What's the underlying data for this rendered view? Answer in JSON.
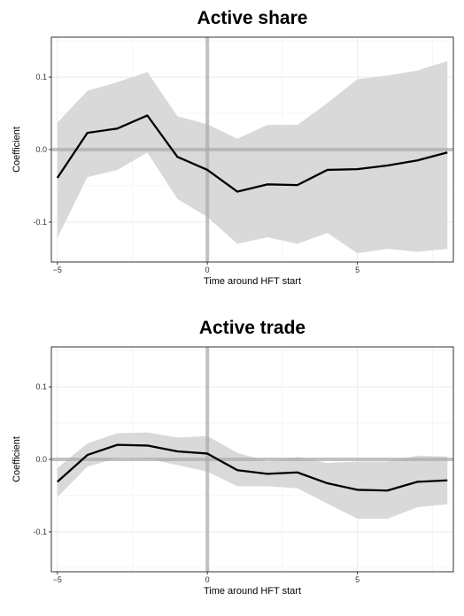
{
  "chart_data": [
    {
      "type": "line",
      "title": "Active share",
      "xlabel": "Time around HFT start",
      "ylabel": "Coefficient",
      "xlim": [
        -5.2,
        8.2
      ],
      "ylim": [
        -0.155,
        0.155
      ],
      "x_ticks": [
        -5,
        0,
        5
      ],
      "x_tick_labels": [
        "−5",
        "0",
        "5"
      ],
      "y_ticks": [
        -0.1,
        0.0,
        0.1
      ],
      "y_tick_labels": [
        "-0.1",
        "0.0",
        "0.1"
      ],
      "grid": true,
      "reference_lines": {
        "x": 0,
        "y": 0
      },
      "x": [
        -5,
        -4,
        -3,
        -2,
        -1,
        0,
        1,
        2,
        3,
        4,
        5,
        6,
        7,
        8
      ],
      "series": [
        {
          "values": [
            -0.039,
            0.023,
            0.029,
            0.047,
            -0.01,
            -0.028,
            -0.058,
            -0.048,
            -0.049,
            -0.028,
            -0.027,
            -0.022,
            -0.015,
            -0.004
          ]
        }
      ],
      "band_lower": [
        -0.122,
        -0.038,
        -0.028,
        -0.004,
        -0.068,
        -0.093,
        -0.13,
        -0.121,
        -0.13,
        -0.115,
        -0.143,
        -0.137,
        -0.141,
        -0.137
      ],
      "band_upper": [
        0.037,
        0.081,
        0.093,
        0.107,
        0.046,
        0.035,
        0.015,
        0.034,
        0.034,
        0.064,
        0.097,
        0.102,
        0.109,
        0.122
      ],
      "colors": {
        "line": "#000000",
        "band": "#d9d9d9",
        "refline": "#a9a9a9",
        "grid": "#ebebeb",
        "frame": "#333333"
      }
    },
    {
      "type": "line",
      "title": "Active trade",
      "xlabel": "Time around HFT start",
      "ylabel": "Coefficient",
      "xlim": [
        -5.2,
        8.2
      ],
      "ylim": [
        -0.155,
        0.155
      ],
      "x_ticks": [
        -5,
        0,
        5
      ],
      "x_tick_labels": [
        "−5",
        "0",
        "5"
      ],
      "y_ticks": [
        -0.1,
        0.0,
        0.1
      ],
      "y_tick_labels": [
        "-0.1",
        "0.0",
        "0.1"
      ],
      "grid": true,
      "reference_lines": {
        "x": 0,
        "y": 0
      },
      "x": [
        -5,
        -4,
        -3,
        -2,
        -1,
        0,
        1,
        2,
        3,
        4,
        5,
        6,
        7,
        8
      ],
      "series": [
        {
          "values": [
            -0.031,
            0.006,
            0.02,
            0.019,
            0.011,
            0.008,
            -0.015,
            -0.02,
            -0.018,
            -0.033,
            -0.042,
            -0.043,
            -0.031,
            -0.029
          ]
        }
      ],
      "band_lower": [
        -0.052,
        -0.01,
        0.002,
        0.001,
        -0.008,
        -0.017,
        -0.037,
        -0.037,
        -0.04,
        -0.061,
        -0.082,
        -0.082,
        -0.066,
        -0.062
      ],
      "band_upper": [
        -0.012,
        0.022,
        0.036,
        0.037,
        0.03,
        0.032,
        0.009,
        -0.003,
        0.003,
        -0.005,
        -0.003,
        -0.003,
        0.005,
        0.004
      ],
      "colors": {
        "line": "#000000",
        "band": "#d9d9d9",
        "refline": "#a9a9a9",
        "grid": "#ebebeb",
        "frame": "#333333"
      }
    }
  ]
}
